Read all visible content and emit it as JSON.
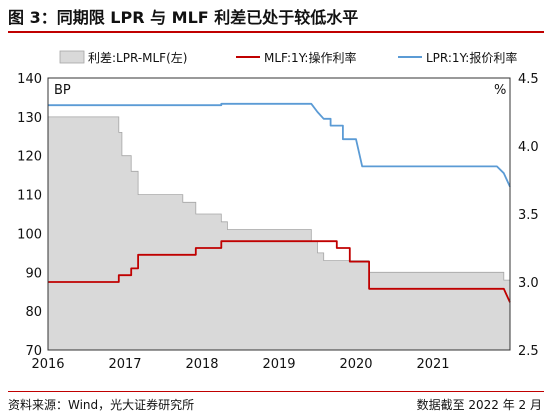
{
  "header": {
    "title": "图 3：同期限 LPR 与 MLF 利差已处于较低水平"
  },
  "footer": {
    "source": "资料来源：Wind，光大证券研究所",
    "cutoff": "数据截至 2022 年 2 月"
  },
  "colors": {
    "accent": "#c00000",
    "spread_fill": "#d9d9d9",
    "spread_edge": "#a6a6a6",
    "mlf": "#c00000",
    "lpr": "#5b9bd5"
  },
  "chart_data": {
    "type": "line",
    "title": "",
    "xlabel": "",
    "ylabel_left": "BP",
    "ylabel_right": "%",
    "xlim": [
      2016.0,
      2022.0
    ],
    "ylim_left": [
      70,
      140
    ],
    "ylim_right": [
      2.5,
      4.5
    ],
    "yticks_left": [
      70,
      80,
      90,
      100,
      110,
      120,
      130,
      140
    ],
    "yticks_right": [
      2.5,
      3.0,
      3.5,
      4.0,
      4.5
    ],
    "xticks": [
      2016,
      2017,
      2018,
      2019,
      2020,
      2021
    ],
    "legend_position": "top",
    "series": [
      {
        "name": "利差:LPR-MLF(左)",
        "kind": "area",
        "axis": "left",
        "points": [
          [
            2016.0,
            130
          ],
          [
            2016.92,
            130
          ],
          [
            2016.92,
            126
          ],
          [
            2016.96,
            126
          ],
          [
            2016.96,
            120
          ],
          [
            2017.08,
            120
          ],
          [
            2017.08,
            116
          ],
          [
            2017.17,
            116
          ],
          [
            2017.17,
            110
          ],
          [
            2017.75,
            110
          ],
          [
            2017.75,
            108
          ],
          [
            2017.92,
            108
          ],
          [
            2017.92,
            105
          ],
          [
            2018.25,
            105
          ],
          [
            2018.25,
            103
          ],
          [
            2018.33,
            103
          ],
          [
            2018.33,
            101
          ],
          [
            2019.42,
            101
          ],
          [
            2019.42,
            98
          ],
          [
            2019.5,
            98
          ],
          [
            2019.5,
            95
          ],
          [
            2019.58,
            95
          ],
          [
            2019.58,
            93
          ],
          [
            2020.17,
            93
          ],
          [
            2020.17,
            90
          ],
          [
            2021.92,
            90
          ],
          [
            2021.92,
            88
          ],
          [
            2022.0,
            88
          ]
        ]
      },
      {
        "name": "MLF:1Y:操作利率",
        "kind": "line",
        "axis": "right",
        "points": [
          [
            2016.0,
            3.0
          ],
          [
            2016.92,
            3.0
          ],
          [
            2016.92,
            3.05
          ],
          [
            2017.08,
            3.05
          ],
          [
            2017.08,
            3.1
          ],
          [
            2017.17,
            3.1
          ],
          [
            2017.17,
            3.2
          ],
          [
            2017.92,
            3.2
          ],
          [
            2017.92,
            3.25
          ],
          [
            2018.25,
            3.25
          ],
          [
            2018.25,
            3.3
          ],
          [
            2019.75,
            3.3
          ],
          [
            2019.75,
            3.25
          ],
          [
            2019.92,
            3.25
          ],
          [
            2019.92,
            3.15
          ],
          [
            2020.17,
            3.15
          ],
          [
            2020.17,
            2.95
          ],
          [
            2021.92,
            2.95
          ],
          [
            2021.96,
            2.9
          ],
          [
            2022.0,
            2.85
          ]
        ]
      },
      {
        "name": "LPR:1Y:报价利率",
        "kind": "line",
        "axis": "right",
        "points": [
          [
            2016.0,
            4.3
          ],
          [
            2018.25,
            4.3
          ],
          [
            2018.25,
            4.31
          ],
          [
            2019.42,
            4.31
          ],
          [
            2019.5,
            4.25
          ],
          [
            2019.58,
            4.2
          ],
          [
            2019.67,
            4.2
          ],
          [
            2019.67,
            4.15
          ],
          [
            2019.83,
            4.15
          ],
          [
            2019.83,
            4.05
          ],
          [
            2020.0,
            4.05
          ],
          [
            2020.08,
            3.85
          ],
          [
            2021.83,
            3.85
          ],
          [
            2021.92,
            3.8
          ],
          [
            2022.0,
            3.7
          ]
        ]
      }
    ]
  }
}
